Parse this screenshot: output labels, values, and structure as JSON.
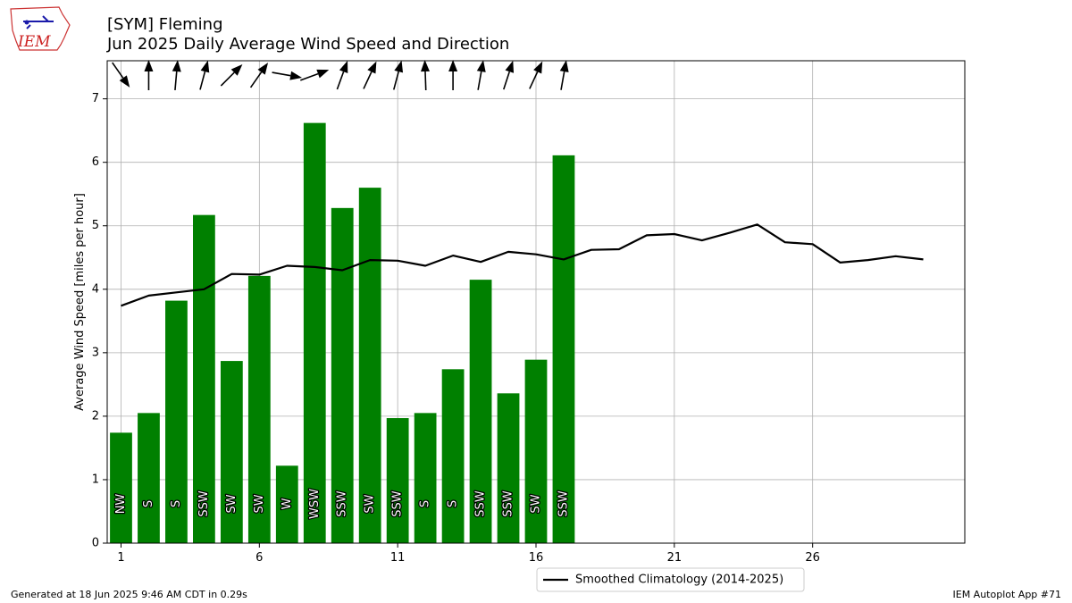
{
  "header": {
    "title_line1": "[SYM] Fleming",
    "title_line2": "Jun 2025 Daily Average Wind Speed and Direction",
    "logo_text": "IEM"
  },
  "footer": {
    "left": "Generated at 18 Jun 2025 9:46 AM CDT in 0.29s",
    "right": "IEM Autoplot App #71"
  },
  "colors": {
    "bar": "#008000",
    "climo": "#000000",
    "grid": "#b0b0b0"
  },
  "chart_data": {
    "type": "bar",
    "title": "[SYM] Fleming",
    "subtitle": "Jun 2025 Daily Average Wind Speed and Direction",
    "ylabel": "Average Wind Speed [miles per hour]",
    "xlabel": "",
    "xlim": [
      0.5,
      31.5
    ],
    "ylim": [
      0,
      7.6
    ],
    "xticks": [
      1,
      6,
      11,
      16,
      21,
      26
    ],
    "yticks": [
      0,
      1,
      2,
      3,
      4,
      5,
      6,
      7
    ],
    "grid": true,
    "legend_position": "bottom-center",
    "series": [
      {
        "type": "bar",
        "days": [
          1,
          2,
          3,
          4,
          5,
          6,
          7,
          8,
          9,
          10,
          11,
          12,
          13,
          14,
          15,
          16,
          17
        ],
        "values": [
          1.74,
          2.05,
          3.82,
          5.17,
          2.87,
          4.21,
          1.22,
          6.62,
          5.28,
          5.6,
          1.97,
          2.05,
          2.74,
          4.15,
          2.36,
          2.89,
          6.11
        ],
        "direction_labels": [
          "NW",
          "S",
          "S",
          "SSW",
          "SW",
          "SW",
          "W",
          "WSW",
          "SSW",
          "SW",
          "SSW",
          "S",
          "S",
          "SSW",
          "SSW",
          "SW",
          "SSW"
        ],
        "direction_degrees": [
          325,
          180,
          185,
          195,
          225,
          215,
          280,
          250,
          200,
          205,
          195,
          178,
          180,
          190,
          198,
          205,
          190
        ]
      },
      {
        "type": "line",
        "name": "Smoothed Climatology (2014-2025)",
        "days": [
          1,
          2,
          3,
          4,
          5,
          6,
          7,
          8,
          9,
          10,
          11,
          12,
          13,
          14,
          15,
          16,
          17,
          18,
          19,
          20,
          21,
          22,
          23,
          24,
          25,
          26,
          27,
          28,
          29,
          30
        ],
        "values": [
          3.74,
          3.9,
          3.95,
          4.0,
          4.24,
          4.23,
          4.37,
          4.35,
          4.3,
          4.46,
          4.45,
          4.37,
          4.53,
          4.43,
          4.59,
          4.55,
          4.47,
          4.62,
          4.63,
          4.85,
          4.87,
          4.77,
          4.89,
          5.02,
          4.74,
          4.71,
          4.42,
          4.46,
          4.52,
          4.47
        ]
      }
    ]
  }
}
